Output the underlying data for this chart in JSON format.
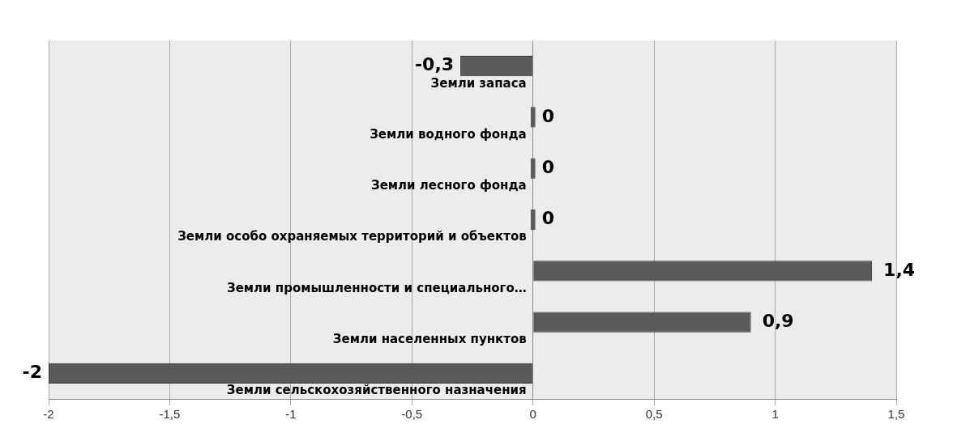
{
  "chart_data": {
    "type": "bar",
    "orientation": "horizontal",
    "categories": [
      "Земли запаса",
      "Земли водного фонда",
      "Земли лесного фонда",
      "Земли особо охраняемых территорий и объектов",
      "Земли промышленности и специального…",
      "Земли населенных пунктов",
      "Земли сельскохозяйственного назначения"
    ],
    "values": [
      -0.3,
      0,
      0,
      0,
      1.4,
      0.9,
      -2
    ],
    "value_labels": [
      "-0,3",
      "0",
      "0",
      "0",
      "1,4",
      "0,9",
      "-2"
    ],
    "color": "#5a5a5a",
    "xlim": [
      -2,
      1.5
    ],
    "xticks": [
      {
        "value": -2,
        "label": "-2"
      },
      {
        "value": -1.5,
        "label": "-1,5"
      },
      {
        "value": -1,
        "label": "-1"
      },
      {
        "value": -0.5,
        "label": "-0,5"
      },
      {
        "value": 0,
        "label": "0"
      },
      {
        "value": 0.5,
        "label": "0,5"
      },
      {
        "value": 1,
        "label": "1"
      },
      {
        "value": 1.5,
        "label": "1,5"
      }
    ],
    "grid": "x",
    "legend": false
  }
}
